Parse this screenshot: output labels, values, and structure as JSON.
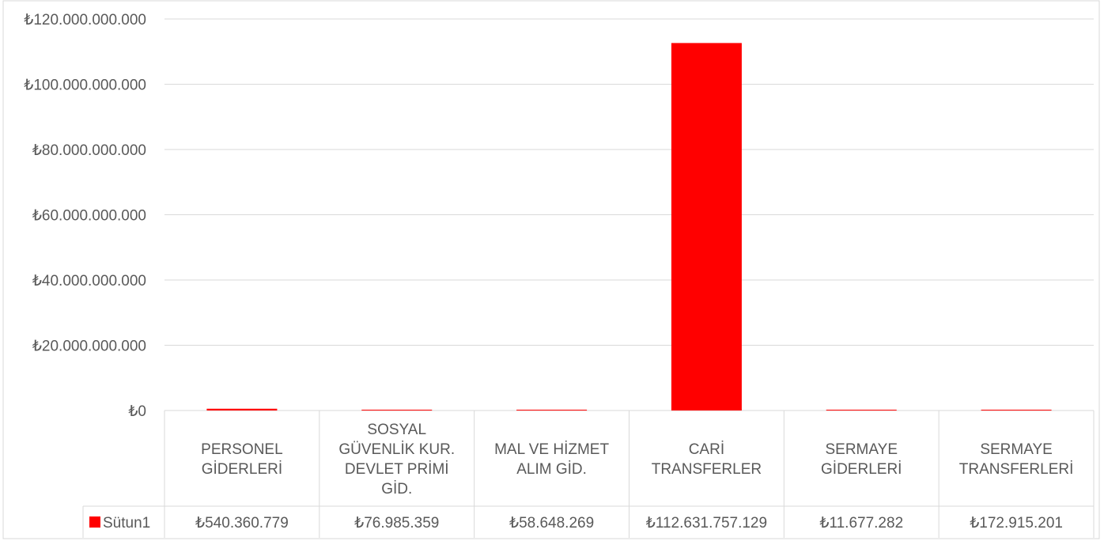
{
  "chart_data": {
    "type": "bar",
    "categories": [
      [
        "PERSONEL",
        "GİDERLERİ"
      ],
      [
        "SOSYAL",
        "GÜVENLİK KUR.",
        "DEVLET PRİMİ",
        "GİD."
      ],
      [
        "MAL VE HİZMET",
        "ALIM GİD."
      ],
      [
        "CARİ",
        "TRANSFERLER"
      ],
      [
        "SERMAYE",
        "GİDERLERİ"
      ],
      [
        "SERMAYE",
        "TRANSFERLERİ"
      ]
    ],
    "series": [
      {
        "name": "Sütun1",
        "color": "#FF0000",
        "values": [
          540360779,
          76985359,
          58648269,
          112631757129,
          11677282,
          172915201
        ],
        "value_labels": [
          "₺540.360.779",
          "₺76.985.359",
          "₺58.648.269",
          "₺112.631.757.129",
          "₺11.677.282",
          "₺172.915.201"
        ]
      }
    ],
    "ylim": [
      0,
      120000000000
    ],
    "yticks": [
      0,
      20000000000,
      40000000000,
      60000000000,
      80000000000,
      100000000000,
      120000000000
    ],
    "ytick_labels": [
      "₺0",
      "₺20.000.000.000",
      "₺40.000.000.000",
      "₺60.000.000.000",
      "₺80.000.000.000",
      "₺100.000.000.000",
      "₺120.000.000.000"
    ],
    "grid": true,
    "legend": "data-table",
    "title": "",
    "xlabel": "",
    "ylabel": ""
  }
}
